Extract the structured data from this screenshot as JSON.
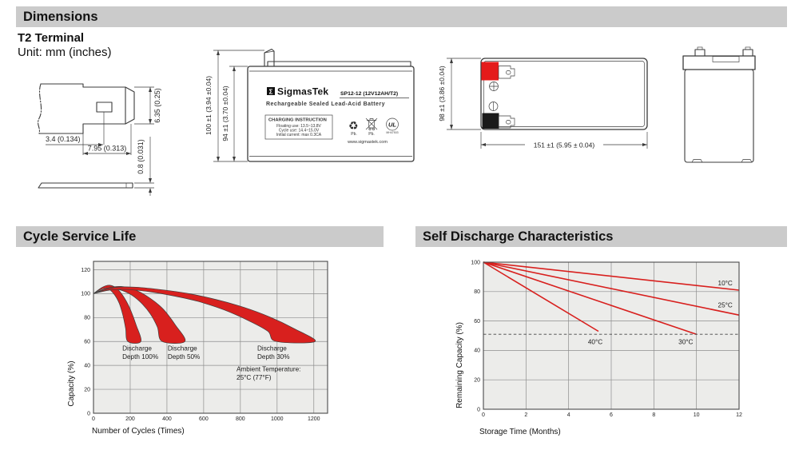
{
  "sections": {
    "dimensions": {
      "title": "Dimensions",
      "subtitle": "T2 Terminal",
      "unit": "Unit: mm (inches)"
    },
    "cycle": {
      "title": "Cycle Service Life"
    },
    "self_discharge": {
      "title": "Self Discharge Characteristics"
    }
  },
  "drawings": {
    "terminal_detail": {
      "dim_offset": "3.4 (0.134)",
      "dim_tab": "7.95 (0.313)",
      "dim_height": "6.35 (0.25)",
      "dim_thickness": "0.8 (0.031)"
    },
    "front_view": {
      "dim_outer": "100 ±1 (3.94 ±0.04)",
      "dim_inner": "94 ±1 (3.70 ±0.04)",
      "label": {
        "logo_glyph": "Σ",
        "brand": "SigmasTek",
        "model": "SP12-12 (12V12AH/T2)",
        "subtitle": "Rechargeable Sealed Lead-Acid Battery",
        "charging_title": "CHARGING INSTRUCTION",
        "charging_lines": [
          "Floating use: 13.5~13.8V",
          "Cycle use: 14.4~15.0V",
          "Initial current: max 0.3CA"
        ],
        "recycle_glyph": "♻",
        "pb_recycle": "Pb.",
        "pb_bin": "Pb.",
        "ul_text": "UL",
        "ul_sub": "MH47503",
        "website": "www.sigmastek.com"
      }
    },
    "top_view": {
      "dim_height": "98 ±1 (3.86 ±0.04)",
      "dim_width": "151 ±1 (5.95 ± 0.04)",
      "positive_marker": "⊕",
      "negative_marker": "⊖",
      "terminal_positive_color": "#e41b1b",
      "terminal_negative_color": "#1a1a1a"
    }
  },
  "chart_data": [
    {
      "id": "cycle-service-life",
      "type": "area",
      "title": "Cycle Service Life",
      "xlabel": "Number of Cycles (Times)",
      "ylabel": "Capacity (%)",
      "xlim": [
        0,
        1275
      ],
      "ylim": [
        0,
        127
      ],
      "xticks": [
        0,
        200,
        400,
        600,
        800,
        1000,
        1200
      ],
      "yticks": [
        0,
        20,
        40,
        60,
        80,
        100,
        120
      ],
      "grid": true,
      "legend_position": "none",
      "band_color": "#d8201e",
      "series": [
        {
          "name": "Discharge Depth 100%",
          "type": "band",
          "upper": [
            [
              0,
              100
            ],
            [
              50,
              105.5
            ],
            [
              90,
              107
            ],
            [
              130,
              104
            ],
            [
              170,
              96
            ],
            [
              200,
              87
            ],
            [
              232,
              74
            ],
            [
              258,
              60
            ]
          ],
          "lower": [
            [
              0,
              100
            ],
            [
              40,
              103.5
            ],
            [
              75,
              104.5
            ],
            [
              110,
              100
            ],
            [
              140,
              92
            ],
            [
              160,
              82
            ],
            [
              175,
              71
            ],
            [
              187,
              60
            ]
          ]
        },
        {
          "name": "Discharge Depth 50%",
          "type": "band",
          "upper": [
            [
              0,
              100
            ],
            [
              70,
              104.5
            ],
            [
              150,
              106
            ],
            [
              230,
              103
            ],
            [
              310,
              96
            ],
            [
              380,
              87
            ],
            [
              445,
              74
            ],
            [
              498,
              60
            ]
          ],
          "lower": [
            [
              0,
              100
            ],
            [
              60,
              103
            ],
            [
              120,
              104
            ],
            [
              195,
              100
            ],
            [
              255,
              93
            ],
            [
              310,
              83
            ],
            [
              348,
              72
            ],
            [
              374,
              60
            ]
          ]
        },
        {
          "name": "Discharge Depth 30%",
          "type": "band",
          "upper": [
            [
              0,
              100
            ],
            [
              110,
              105
            ],
            [
              220,
              105.5
            ],
            [
              360,
              103.5
            ],
            [
              520,
              100
            ],
            [
              670,
              95
            ],
            [
              820,
              88.5
            ],
            [
              960,
              80.5
            ],
            [
              1090,
              71
            ],
            [
              1207,
              60
            ]
          ],
          "lower": [
            [
              0,
              100
            ],
            [
              90,
              103
            ],
            [
              180,
              103.5
            ],
            [
              310,
              101.5
            ],
            [
              440,
              98
            ],
            [
              570,
              93.5
            ],
            [
              710,
              86.5
            ],
            [
              850,
              77
            ],
            [
              950,
              68.5
            ],
            [
              995,
              60
            ]
          ]
        }
      ],
      "annotations": [
        {
          "lines": [
            "Discharge",
            "Depth 100%"
          ],
          "x": 157,
          "y": 54.5
        },
        {
          "lines": [
            "Discharge",
            "Depth 50%"
          ],
          "x": 404,
          "y": 54.5
        },
        {
          "lines": [
            "Discharge",
            "Depth 30%"
          ],
          "x": 892,
          "y": 54.5
        },
        {
          "lines": [
            "Ambient Temperature:",
            "25°C (77°F)"
          ],
          "x": 779,
          "y": 37
        }
      ]
    },
    {
      "id": "self-discharge",
      "type": "line",
      "title": "Self Discharge Characteristics",
      "xlabel": "Storage Time (Months)",
      "ylabel": "Remaining Capacity (%)",
      "xlim": [
        0,
        12
      ],
      "ylim": [
        0,
        100
      ],
      "xticks": [
        0,
        2,
        4,
        6,
        8,
        10,
        12
      ],
      "yticks": [
        0,
        20,
        40,
        60,
        80,
        100
      ],
      "grid": true,
      "legend_position": "inline-labels",
      "line_color": "#d8201e",
      "series": [
        {
          "name": "10°C",
          "points": [
            [
              0,
              100
            ],
            [
              12,
              81
            ]
          ]
        },
        {
          "name": "25°C",
          "points": [
            [
              0,
              100
            ],
            [
              12,
              64
            ]
          ]
        },
        {
          "name": "30°C",
          "points": [
            [
              0,
              100
            ],
            [
              10,
              51
            ]
          ]
        },
        {
          "name": "40°C",
          "points": [
            [
              0,
              100
            ],
            [
              5.4,
              53
            ]
          ]
        }
      ],
      "ref_line": {
        "y": 51,
        "style": "dashed"
      },
      "labels": [
        {
          "text": "10°C",
          "x": 11.35,
          "y": 86
        },
        {
          "text": "25°C",
          "x": 11.35,
          "y": 71
        },
        {
          "text": "30°C",
          "x": 9.5,
          "y": 46
        },
        {
          "text": "40°C",
          "x": 5.25,
          "y": 46
        }
      ]
    }
  ]
}
